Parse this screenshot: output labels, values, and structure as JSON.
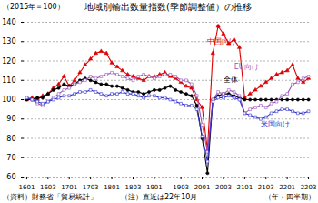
{
  "chart_data": {
    "type": "line",
    "title": "地域別輸出数量指数(季節調整値）の推移",
    "subtitle": "（2015年＝100）",
    "xlabel": "（年・四半期）",
    "source": "（資料）財務省「貿易統計」",
    "note": "（注）直近は22年10月",
    "categories": [
      "1601",
      null,
      null,
      null,
      "1603",
      null,
      null,
      null,
      "1701",
      null,
      null,
      null,
      "1703",
      null,
      null,
      null,
      "1801",
      null,
      null,
      null,
      "1803",
      null,
      null,
      null,
      "1901",
      null,
      null,
      null,
      null,
      "1903",
      null,
      null,
      null,
      "2001",
      null,
      null,
      null,
      "2003",
      null,
      null,
      null,
      "2101",
      null,
      null,
      null,
      "2103",
      null,
      null,
      null,
      "2201",
      null,
      null,
      null,
      "2203"
    ],
    "series": [
      {
        "name": "中国向け",
        "color": "#dd0000",
        "marker": "triangle",
        "values": [
          100,
          101,
          100,
          102,
          103,
          106,
          108,
          112,
          107,
          110,
          114,
          118,
          121,
          124,
          125,
          124,
          119,
          117,
          115,
          113,
          112,
          111,
          110,
          112,
          112,
          113,
          114,
          112,
          111,
          109,
          107,
          106,
          100,
          96,
          74,
          124,
          138,
          134,
          129,
          131,
          127,
          101,
          103,
          105,
          107,
          109,
          111,
          113,
          114,
          115,
          118,
          111,
          109,
          111
        ],
        "annotation": {
          "x": 34,
          "y": 129
        }
      },
      {
        "name": "全体",
        "color": "#000000",
        "marker": "circle",
        "values": [
          100,
          100,
          101,
          101,
          103,
          105,
          106,
          108,
          107,
          108,
          110,
          111,
          110,
          109,
          108,
          108,
          107,
          107,
          106,
          105,
          104,
          104,
          103,
          104,
          105,
          105,
          106,
          107,
          105,
          104,
          103,
          102,
          97,
          80,
          62,
          100,
          102,
          103,
          103,
          102,
          101,
          100,
          100,
          100,
          100,
          100,
          100,
          100,
          100,
          100,
          100,
          100,
          100,
          100
        ],
        "annotation": {
          "x": 37,
          "y": 109
        }
      },
      {
        "name": "EU向け",
        "color": "#9955bb",
        "marker": "square",
        "values": [
          101,
          100,
          98,
          97,
          99,
          101,
          103,
          105,
          106,
          108,
          109,
          110,
          112,
          111,
          112,
          113,
          114,
          113,
          112,
          111,
          110,
          112,
          113,
          112,
          111,
          112,
          113,
          113,
          112,
          110,
          110,
          108,
          102,
          87,
          73,
          100,
          104,
          103,
          105,
          104,
          102,
          93,
          95,
          96,
          97,
          96,
          98,
          99,
          102,
          103,
          108,
          109,
          111,
          112
        ],
        "annotation": {
          "x": 39,
          "y": 116
        }
      },
      {
        "name": "米国向け",
        "color": "#3333cc",
        "marker": "square",
        "values": [
          101,
          100,
          99,
          98,
          99,
          100,
          101,
          102,
          102,
          103,
          104,
          104,
          105,
          104,
          103,
          102,
          103,
          103,
          104,
          103,
          103,
          102,
          101,
          102,
          102,
          101,
          101,
          100,
          99,
          98,
          97,
          97,
          95,
          81,
          68,
          99,
          101,
          101,
          102,
          101,
          100,
          93,
          92,
          91,
          90,
          91,
          93,
          94,
          95,
          95,
          94,
          93,
          93,
          94
        ],
        "annotation": {
          "x": 44,
          "y": 86
        }
      }
    ],
    "ylim": [
      60,
      140
    ],
    "yticks": [
      60,
      70,
      80,
      90,
      100,
      110,
      120,
      130,
      140
    ],
    "grid": true
  }
}
